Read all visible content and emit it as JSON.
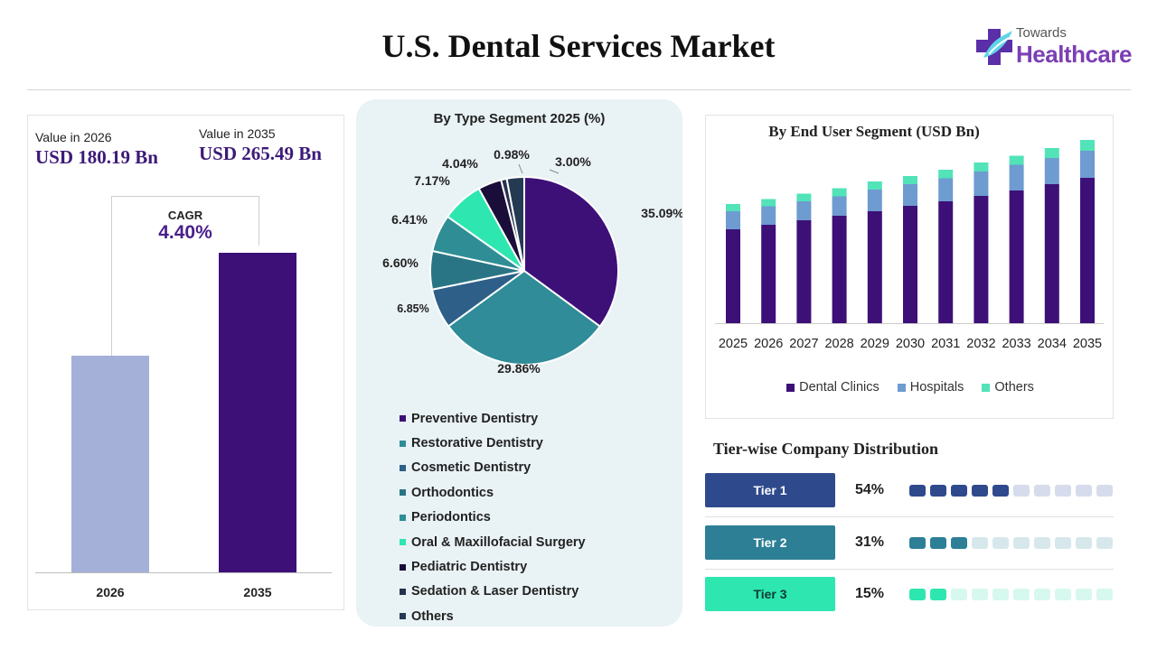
{
  "title": "U.S. Dental Services Market",
  "logo": {
    "top": "Towards",
    "main": "Healthcare"
  },
  "market_value": {
    "left_label": "Value in 2026",
    "left_value": "USD 180.19 Bn",
    "right_label": "Value in 2035",
    "right_value": "USD 265.49 Bn",
    "cagr_label": "CAGR",
    "cagr_value": "4.40%"
  },
  "chart_data": [
    {
      "type": "bar",
      "categories": [
        "2026",
        "2035"
      ],
      "values": [
        180.19,
        265.49
      ],
      "colors": [
        "#a5b0d8",
        "#3d1078"
      ],
      "ylim": [
        0,
        300
      ]
    },
    {
      "type": "pie",
      "title": "By Type Segment 2025 (%)",
      "labels": [
        "Preventive Dentistry",
        "Restorative Dentistry",
        "Cosmetic Dentistry",
        "Orthodontics",
        "Periodontics",
        "Oral & Maxillofacial Surgery",
        "Pediatric Dentistry",
        "Sedation & Laser Dentistry",
        "Others"
      ],
      "values": [
        35.09,
        29.86,
        6.85,
        6.6,
        6.41,
        7.17,
        4.04,
        0.98,
        3.0
      ],
      "value_labels": [
        "35.09%",
        "29.86%",
        "6.85%",
        "6.60%",
        "6.41%",
        "7.17%",
        "4.04%",
        "0.98%",
        "3.00%"
      ],
      "colors": [
        "#3d1078",
        "#2f8c98",
        "#2d5f88",
        "#2a7585",
        "#2f8e95",
        "#2ee6b0",
        "#1a0d3a",
        "#26324e",
        "#243a52"
      ]
    },
    {
      "type": "bar",
      "stacked": true,
      "title": "By End User Segment (USD Bn)",
      "categories": [
        "2025",
        "2026",
        "2027",
        "2028",
        "2029",
        "2030",
        "2031",
        "2032",
        "2033",
        "2034",
        "2035"
      ],
      "series": [
        {
          "name": "Dental Clinics",
          "color": "#3d1078",
          "values": [
            104,
            109,
            114,
            119,
            124,
            130,
            135,
            141,
            147,
            154,
            161
          ]
        },
        {
          "name": "Hospitals",
          "color": "#6e9bd0",
          "values": [
            20,
            20.5,
            21,
            21.5,
            24,
            24,
            25.5,
            27,
            28.5,
            29,
            30
          ]
        },
        {
          "name": "Others",
          "color": "#52e3b8",
          "values": [
            8,
            8,
            8.5,
            9,
            9,
            9,
            9.5,
            10,
            10,
            11,
            12
          ]
        }
      ],
      "ylim": [
        0,
        210
      ],
      "grid": false,
      "legend": "bottom"
    },
    {
      "type": "table",
      "title": "Tier-wise Company Distribution",
      "rows": [
        {
          "label": "Tier 1",
          "value": "54%",
          "percent": 54,
          "filled": 5,
          "color": "#2f4a8c",
          "light": "#d6dcec"
        },
        {
          "label": "Tier 2",
          "value": "31%",
          "percent": 31,
          "filled": 3,
          "color": "#2d7f96",
          "light": "#d7e8ed"
        },
        {
          "label": "Tier 3",
          "value": "15%",
          "percent": 15,
          "filled": 2,
          "color": "#2ee6b0",
          "light": "#d6f8ee"
        }
      ]
    }
  ]
}
